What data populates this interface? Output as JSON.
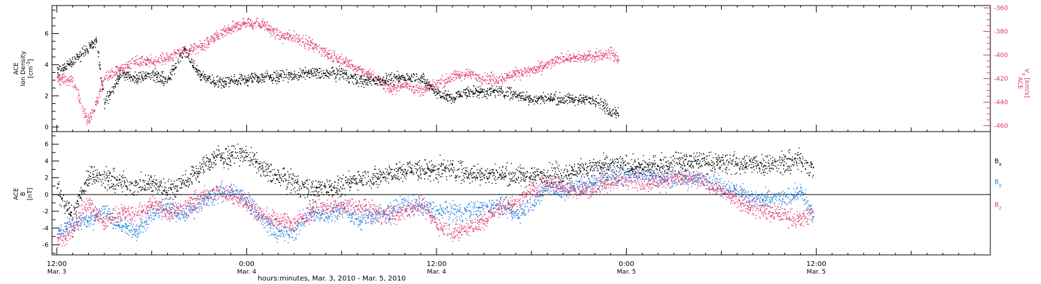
{
  "colors": {
    "black": "#000000",
    "pink": "#e0336a",
    "blue": "#1a7fe0"
  },
  "x_axis": {
    "title": "hours:minutes, Mar.  3, 2010 - Mar.  5, 2010",
    "range_hours": [
      -0.3,
      59.0
    ],
    "tick_labels": [
      {
        "h": 0,
        "time": "12:00",
        "date": "Mar. 3"
      },
      {
        "h": 12,
        "time": "0:00",
        "date": "Mar. 4"
      },
      {
        "h": 24,
        "time": "12:00",
        "date": "Mar. 4"
      },
      {
        "h": 36,
        "time": "0:00",
        "date": "Mar. 5"
      },
      {
        "h": 48,
        "time": "12:00",
        "date": "Mar. 5"
      }
    ]
  },
  "chart_data": [
    {
      "type": "scatter",
      "panel": "top",
      "left_axis": {
        "label_lines": [
          "ACE",
          "Ion Density"
        ],
        "unit": "[cm",
        "unit_sup": "-3",
        "unit_end": "]",
        "ylim": [
          -0.3,
          7.8
        ],
        "ticks": [
          0,
          2,
          4,
          6
        ]
      },
      "right_axis": {
        "label": "ACE",
        "label_sub": "x",
        "label_pre": "V",
        "unit": "[km/s]",
        "ylim": [
          -465,
          -358
        ],
        "ticks": [
          -360,
          -380,
          -400,
          -420,
          -440,
          -460
        ],
        "color": "#e0336a"
      },
      "series": [
        {
          "key": "density",
          "color": "#000000",
          "axis": "left",
          "anchors_h": [
            0,
            1,
            1.8,
            2.5,
            3,
            4,
            5,
            6,
            7,
            8,
            9,
            10,
            11,
            12,
            13,
            14,
            15,
            16,
            17,
            18,
            19,
            20,
            21,
            22,
            23,
            24,
            25,
            26,
            27,
            28,
            29,
            30,
            31,
            32,
            33,
            34,
            35,
            35.5,
            36,
            37,
            38,
            39,
            40,
            41,
            42,
            43,
            44,
            45,
            46,
            47,
            47.8
          ],
          "anchors_v": [
            3.6,
            4.2,
            5.0,
            5.5,
            1.5,
            3.4,
            3.2,
            3.4,
            3.0,
            5.0,
            3.4,
            2.9,
            3.0,
            3.1,
            3.2,
            3.3,
            3.3,
            3.5,
            3.4,
            3.5,
            3.0,
            3.0,
            3.1,
            3.2,
            3.2,
            2.2,
            1.9,
            2.3,
            2.3,
            2.3,
            2.1,
            1.8,
            1.9,
            1.8,
            1.8,
            1.8,
            1.0,
            null,
            null,
            null,
            null,
            null,
            null,
            null,
            null,
            null,
            null,
            null,
            null,
            null,
            null
          ],
          "end_h": 35.6,
          "scatter": 0.55
        },
        {
          "key": "vx",
          "color": "#e0336a",
          "axis": "right",
          "anchors_h": [
            0,
            1,
            1.9,
            2.4,
            3,
            4,
            5,
            6,
            7,
            8,
            9,
            10,
            11,
            12,
            13,
            14,
            15,
            16,
            17,
            18,
            19,
            20,
            21,
            22,
            23,
            24,
            25,
            26,
            27,
            28,
            29,
            30,
            31,
            32,
            33,
            34,
            35,
            35.5
          ],
          "anchors_v": [
            -420,
            -422,
            -455,
            -445,
            -418,
            -412,
            -405,
            -405,
            -402,
            -396,
            -394,
            -385,
            -377,
            -372,
            -373,
            -383,
            -385,
            -390,
            -398,
            -404,
            -412,
            -418,
            -428,
            -425,
            -430,
            -425,
            -418,
            -415,
            -420,
            -420,
            -415,
            -413,
            -408,
            -402,
            -402,
            -400,
            -398,
            -404
          ],
          "end_h": 35.6,
          "scatter": 7
        }
      ]
    },
    {
      "type": "scatter",
      "panel": "bottom",
      "left_axis": {
        "label_lines": [
          "ACE",
          "B"
        ],
        "unit": "[nT]",
        "ylim": [
          -7.2,
          7.5
        ],
        "ticks": [
          -6,
          -4,
          -2,
          0,
          2,
          4,
          6
        ]
      },
      "zero_line": true,
      "legend": [
        {
          "label": "B",
          "sub": "x",
          "color": "#000000",
          "value_pos": 4
        },
        {
          "label": "B",
          "sub": "y",
          "color": "#1a7fe0",
          "value_pos": 1.5
        },
        {
          "label": "B",
          "sub": "z",
          "color": "#e0336a",
          "value_pos": -1.2
        }
      ],
      "series": [
        {
          "key": "bx",
          "color": "#000000",
          "anchors_h": [
            0,
            1,
            2,
            3,
            4,
            5,
            6,
            7,
            8,
            9,
            10,
            11,
            12,
            13,
            14,
            15,
            16,
            17,
            18,
            19,
            20,
            21,
            22,
            23,
            24,
            25,
            26,
            27,
            28,
            29,
            30,
            31,
            32,
            33,
            34,
            35,
            36,
            37,
            38,
            39,
            40,
            41,
            42,
            43,
            44,
            45,
            46,
            47,
            47.8
          ],
          "anchors_v": [
            0.5,
            -2.5,
            2.5,
            2.0,
            1.5,
            1.0,
            1.5,
            0.5,
            1.5,
            3.0,
            4.5,
            4.7,
            4.8,
            3.0,
            2.0,
            1.5,
            0.5,
            1.0,
            1.0,
            2.0,
            2.0,
            2.5,
            3.0,
            3.0,
            3.0,
            3.0,
            2.5,
            2.5,
            2.5,
            2.3,
            2.3,
            2.5,
            2.5,
            3.0,
            3.3,
            3.5,
            3.5,
            3.3,
            3.5,
            3.8,
            4.0,
            4.0,
            3.8,
            3.7,
            3.7,
            3.7,
            3.8,
            4.2,
            3.0
          ],
          "end_h": 47.9,
          "scatter": 1.8
        },
        {
          "key": "by",
          "color": "#1a7fe0",
          "anchors_h": [
            0,
            1,
            2,
            3,
            4,
            5,
            6,
            7,
            8,
            9,
            10,
            11,
            12,
            13,
            14,
            15,
            16,
            17,
            18,
            19,
            20,
            21,
            22,
            23,
            24,
            25,
            26,
            27,
            28,
            29,
            30,
            31,
            32,
            33,
            34,
            35,
            36,
            37,
            38,
            39,
            40,
            41,
            42,
            43,
            44,
            45,
            46,
            47,
            47.8
          ],
          "anchors_v": [
            -4.5,
            -3.5,
            -3.0,
            -2.0,
            -3.5,
            -4.5,
            -2.0,
            -1.5,
            -2.5,
            -1.0,
            0.0,
            0.5,
            -0.5,
            -3.0,
            -4.5,
            -4.5,
            -2.0,
            -2.5,
            -1.5,
            -3.0,
            -2.5,
            -2.0,
            -1.0,
            -1.5,
            -2.0,
            -2.0,
            -2.0,
            -1.5,
            -1.0,
            -2.5,
            -1.0,
            1.0,
            0.5,
            1.0,
            1.5,
            2.0,
            2.5,
            2.5,
            2.0,
            2.0,
            2.0,
            2.0,
            1.0,
            0.5,
            -0.5,
            -0.5,
            -0.5,
            0.5,
            -2.5
          ],
          "end_h": 47.9,
          "scatter": 1.6
        },
        {
          "key": "bz",
          "color": "#e0336a",
          "anchors_h": [
            0,
            1,
            2,
            3,
            4,
            5,
            6,
            7,
            8,
            9,
            10,
            11,
            12,
            13,
            14,
            15,
            16,
            17,
            18,
            19,
            20,
            21,
            22,
            23,
            24,
            25,
            26,
            27,
            28,
            29,
            30,
            31,
            32,
            33,
            34,
            35,
            36,
            37,
            38,
            39,
            40,
            41,
            42,
            43,
            44,
            45,
            46,
            47,
            47.8
          ],
          "anchors_v": [
            -5.5,
            -4.0,
            -1.0,
            -3.5,
            -2.0,
            -2.5,
            -1.0,
            -2.0,
            -1.5,
            -0.5,
            0.5,
            0.0,
            -1.0,
            -2.5,
            -3.0,
            -3.5,
            -2.0,
            -1.5,
            -1.5,
            -1.5,
            -2.0,
            -2.5,
            -2.0,
            -1.0,
            -3.5,
            -4.5,
            -4.0,
            -3.0,
            -1.5,
            -1.0,
            0.5,
            1.5,
            1.0,
            0.5,
            1.0,
            1.5,
            2.0,
            1.5,
            1.5,
            2.0,
            2.0,
            1.5,
            0.5,
            -0.5,
            -1.5,
            -2.0,
            -2.5,
            -3.0,
            -2.0
          ],
          "end_h": 47.9,
          "scatter": 1.6
        }
      ]
    }
  ]
}
